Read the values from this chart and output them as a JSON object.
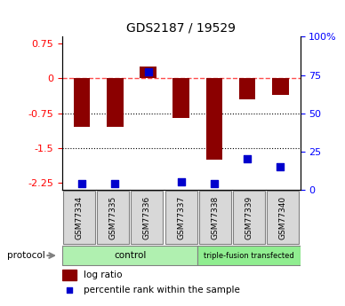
{
  "title": "GDS2187 / 19529",
  "samples": [
    "GSM77334",
    "GSM77335",
    "GSM77336",
    "GSM77337",
    "GSM77338",
    "GSM77339",
    "GSM77340"
  ],
  "log_ratio": [
    -1.05,
    -1.05,
    0.25,
    -0.85,
    -1.75,
    -0.45,
    -0.35
  ],
  "percentile_rank": [
    4,
    4,
    77,
    5,
    4,
    20,
    15
  ],
  "bar_color": "#8B0000",
  "dot_color": "#0000CD",
  "ylim_left": [
    -2.4,
    0.9
  ],
  "ylim_right": [
    0,
    100
  ],
  "left_yticks": [
    0.75,
    0,
    -0.75,
    -1.5,
    -2.25
  ],
  "right_yticks": [
    100,
    75,
    50,
    25,
    0
  ],
  "right_yticklabels": [
    "100%",
    "75",
    "50",
    "25",
    "0"
  ],
  "dotted_lines": [
    -0.75,
    -1.5
  ],
  "dashed_line": 0.0,
  "bar_width": 0.5,
  "protocol_label": "protocol",
  "ctrl_label": "control",
  "tf_label": "triple-fusion transfected",
  "ctrl_color": "#b0f0b0",
  "tf_color": "#90ee90",
  "legend_bar_label": "log ratio",
  "legend_dot_label": "percentile rank within the sample"
}
